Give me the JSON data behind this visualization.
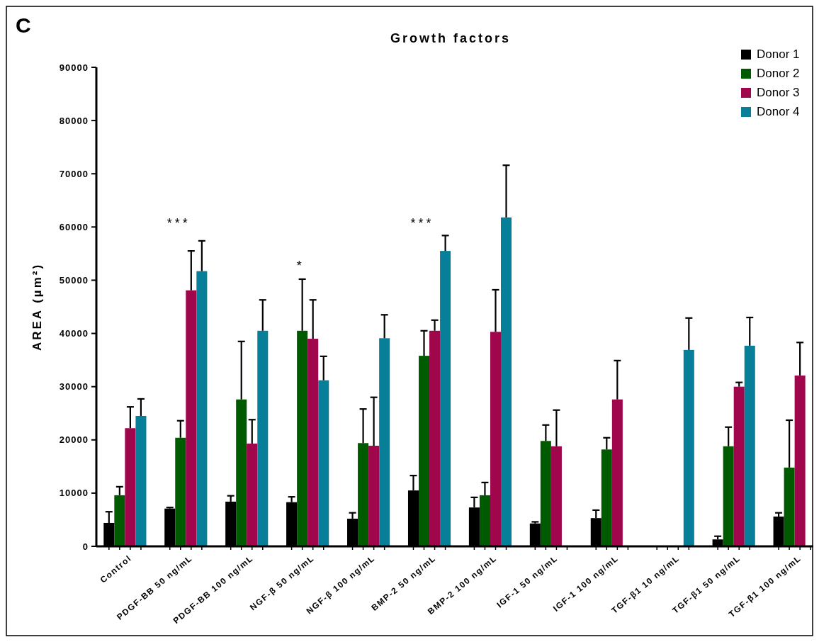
{
  "chart_data": {
    "type": "bar",
    "title": "Growth factors",
    "ylabel": "AREA (µm²)",
    "categories": [
      "Control",
      "PDGF-BB 50 ng/mL",
      "PDGF-BB 100 ng/mL",
      "NGF-β 50 ng/mL",
      "NGF-β 100 ng/mL",
      "BMP-2 50 ng/mL",
      "BMP-2 100 ng/mL",
      "IGF-1 50 ng/mL",
      "IGF-1 100 ng/mL",
      "TGF-β1 10 ng/mL",
      "TGF-β1 50 ng/mL",
      "TGF-β1 100 ng/mL"
    ],
    "series": [
      {
        "name": "Donor 1",
        "color": "#000000",
        "values": [
          4400,
          7100,
          8400,
          8300,
          5200,
          10500,
          7300,
          4300,
          5300,
          null,
          1300,
          5600
        ],
        "errors": [
          [
            4400,
            6500
          ],
          [
            7100,
            7300
          ],
          [
            8400,
            9500
          ],
          [
            8300,
            9300
          ],
          [
            5200,
            6300
          ],
          [
            10500,
            13300
          ],
          [
            7300,
            9200
          ],
          [
            4300,
            4600
          ],
          [
            5300,
            6800
          ],
          null,
          [
            1300,
            1900
          ],
          [
            5600,
            6300
          ]
        ]
      },
      {
        "name": "Donor 2",
        "color": "#005a00",
        "values": [
          9600,
          20400,
          27600,
          40500,
          19400,
          35800,
          9600,
          19800,
          18200,
          null,
          18800,
          14800
        ],
        "errors": [
          [
            9600,
            11200
          ],
          [
            20400,
            23600
          ],
          [
            27600,
            38500
          ],
          [
            40500,
            50200
          ],
          [
            19400,
            25800
          ],
          [
            35800,
            40500
          ],
          [
            9600,
            12000
          ],
          [
            19800,
            22800
          ],
          [
            18200,
            20400
          ],
          null,
          [
            18800,
            22400
          ],
          [
            14800,
            23700
          ]
        ]
      },
      {
        "name": "Donor 3",
        "color": "#a0064b",
        "values": [
          22200,
          48100,
          19300,
          39000,
          18900,
          40500,
          40300,
          18800,
          27600,
          null,
          30000,
          32100
        ],
        "errors": [
          [
            22200,
            26200
          ],
          [
            48100,
            55500
          ],
          [
            19300,
            23800
          ],
          [
            39000,
            46300
          ],
          [
            18900,
            28000
          ],
          [
            40500,
            42500
          ],
          [
            40300,
            48200
          ],
          [
            18800,
            25600
          ],
          [
            27600,
            34900
          ],
          null,
          [
            30000,
            30800
          ],
          [
            32100,
            38300
          ]
        ]
      },
      {
        "name": "Donor 4",
        "color": "#077f99",
        "values": [
          24500,
          51700,
          40500,
          31200,
          39100,
          55500,
          61800,
          null,
          null,
          36900,
          37700,
          null
        ],
        "errors": [
          [
            24500,
            27700
          ],
          [
            51700,
            57400
          ],
          [
            40500,
            46300
          ],
          [
            31200,
            35700
          ],
          [
            39100,
            43500
          ],
          [
            55500,
            58400
          ],
          [
            61800,
            71600
          ],
          null,
          null,
          [
            36900,
            42900
          ],
          [
            37700,
            43000
          ],
          null
        ]
      }
    ],
    "ylim": [
      0,
      90000
    ],
    "yticks": [
      0,
      10000,
      20000,
      30000,
      40000,
      50000,
      60000,
      70000,
      80000,
      90000
    ],
    "legend": "top right",
    "annotations": [
      "C",
      "***",
      "*",
      "***"
    ]
  }
}
